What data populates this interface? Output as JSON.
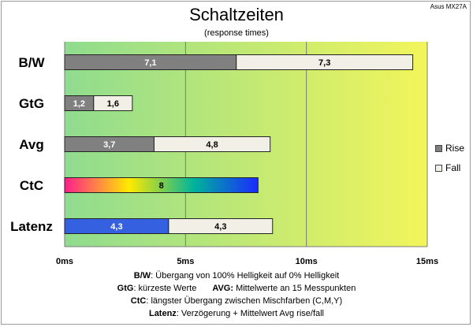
{
  "title": "Schaltzeiten",
  "subtitle": "(response times)",
  "brand": "Asus MX27A",
  "chart_data": {
    "type": "bar",
    "orientation": "horizontal",
    "stacked": true,
    "categories": [
      "B/W",
      "GtG",
      "Avg",
      "CtC",
      "Latenz"
    ],
    "series": [
      {
        "name": "Rise",
        "values": [
          7.1,
          1.2,
          3.7,
          8,
          4.3
        ],
        "labels": [
          "7,1",
          "1,2",
          "3,7",
          "8",
          "4,3"
        ]
      },
      {
        "name": "Fall",
        "values": [
          7.3,
          1.6,
          4.8,
          0,
          4.3
        ],
        "labels": [
          "7,3",
          "1,6",
          "4,8",
          "",
          "4,3"
        ]
      }
    ],
    "xlim": [
      0,
      15
    ],
    "xticks": [
      0,
      5,
      10,
      15
    ],
    "xtick_labels": [
      "0ms",
      "5ms",
      "10ms",
      "15ms"
    ],
    "grid": true,
    "legend_position": "right",
    "colors": {
      "rise": "#808080",
      "fall": "#f2efe6",
      "ctc_gradient": [
        "#ff1e8c",
        "#ffea00",
        "#00b49a",
        "#1a2aff"
      ],
      "latenz_rise": "#3560e0",
      "background_gradient": [
        "#8fdc8f",
        "#f2f55a"
      ]
    }
  },
  "legend": {
    "rise": "Rise",
    "fall": "Fall"
  },
  "notes": [
    {
      "key": "B/W",
      "text": ":  Übergang von 100% Helligkeit auf 0% Helligkeit"
    },
    {
      "key": "GtG",
      "text": ": kürzeste  Werte",
      "key2": "AVG:",
      "text2": " Mittelwerte an 15 Messpunkten"
    },
    {
      "key": "CtC",
      "text": ": längster Übergang  zwischen Mischfarben  (C,M,Y)"
    },
    {
      "key": "Latenz",
      "text": ": Verzögerung  + Mittelwert Avg rise/fall"
    }
  ]
}
